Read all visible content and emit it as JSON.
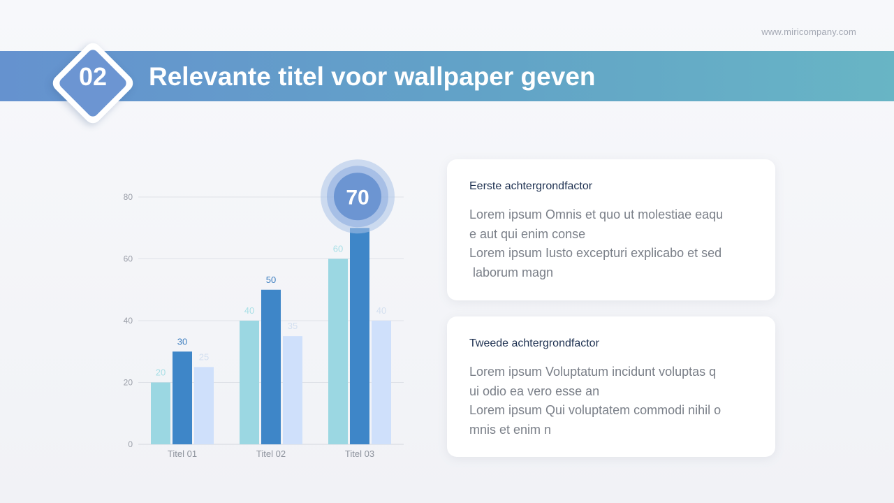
{
  "website": "www.miricompany.com",
  "header": {
    "number": "02",
    "title": "Relevante titel voor wallpaper geven"
  },
  "colors": {
    "banner_start": "#6592cf",
    "banner_end": "#68b5c5",
    "series_1": "#9bd7e2",
    "series_2": "#3e86c8",
    "series_3": "#cfe0fb",
    "highlight": "#6c95d2"
  },
  "cards": [
    {
      "title": "Eerste achtergrondfactor",
      "lines": [
        "Lorem ipsum Omnis et quo ut molestiae eaqu",
        "e aut qui enim conse",
        "Lorem ipsum Iusto excepturi explicabo et sed",
        " laborum magn"
      ]
    },
    {
      "title": "Tweede achtergrondfactor",
      "lines": [
        "Lorem ipsum Voluptatum incidunt voluptas q",
        "ui odio ea vero esse an",
        "Lorem ipsum Qui voluptatem commodi nihil o",
        "mnis et enim n"
      ]
    }
  ],
  "chart_data": {
    "type": "bar",
    "categories": [
      "Titel 01",
      "Titel 02",
      "Titel 03"
    ],
    "series": [
      {
        "values": [
          20,
          40,
          60
        ],
        "color": "#9bd7e2",
        "label_color": "#a8dfe6"
      },
      {
        "values": [
          30,
          50,
          70
        ],
        "color": "#3e86c8",
        "label_color": "#3e7fc0"
      },
      {
        "values": [
          25,
          35,
          40
        ],
        "color": "#cfe0fb",
        "label_color": "#d3dff0"
      }
    ],
    "yticks": [
      0,
      20,
      40,
      60,
      80
    ],
    "ylim": [
      0,
      80
    ],
    "grid": true,
    "highlight": {
      "category": "Titel 03",
      "value": 70,
      "label": "70"
    }
  }
}
